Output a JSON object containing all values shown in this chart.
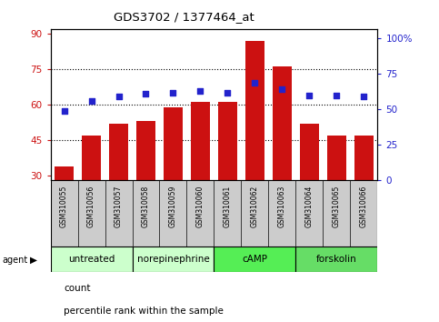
{
  "title": "GDS3702 / 1377464_at",
  "samples": [
    "GSM310055",
    "GSM310056",
    "GSM310057",
    "GSM310058",
    "GSM310059",
    "GSM310060",
    "GSM310061",
    "GSM310062",
    "GSM310063",
    "GSM310064",
    "GSM310065",
    "GSM310066"
  ],
  "counts": [
    34,
    47,
    52,
    53,
    59,
    61,
    61,
    87,
    76,
    52,
    47,
    47
  ],
  "percentile": [
    49,
    56,
    59,
    61,
    62,
    63,
    62,
    69,
    64,
    60,
    60,
    59
  ],
  "agents": [
    {
      "label": "untreated",
      "start": 0,
      "end": 3
    },
    {
      "label": "norepinephrine",
      "start": 3,
      "end": 6
    },
    {
      "label": "cAMP",
      "start": 6,
      "end": 9
    },
    {
      "label": "forskolin",
      "start": 9,
      "end": 12
    }
  ],
  "bar_color": "#cc1111",
  "dot_color": "#2222cc",
  "bar_width": 0.7,
  "ylim_left": [
    28,
    92
  ],
  "yticks_left": [
    30,
    45,
    60,
    75,
    90
  ],
  "ylim_right": [
    0,
    106.67
  ],
  "yticks_right": [
    0,
    25,
    50,
    75,
    100
  ],
  "yticklabels_right": [
    "0",
    "25",
    "50",
    "75",
    "100%"
  ],
  "hlines": [
    45,
    60,
    75
  ],
  "agent_bg_light": "#c8f5c8",
  "agent_bg_dark": "#66ee66",
  "sample_bg_color": "#cccccc",
  "legend_count_label": "count",
  "legend_pct_label": "percentile rank within the sample",
  "agent_colors": [
    "#c8f5c8",
    "#c8f5c8",
    "#55dd55",
    "#77ee77"
  ]
}
